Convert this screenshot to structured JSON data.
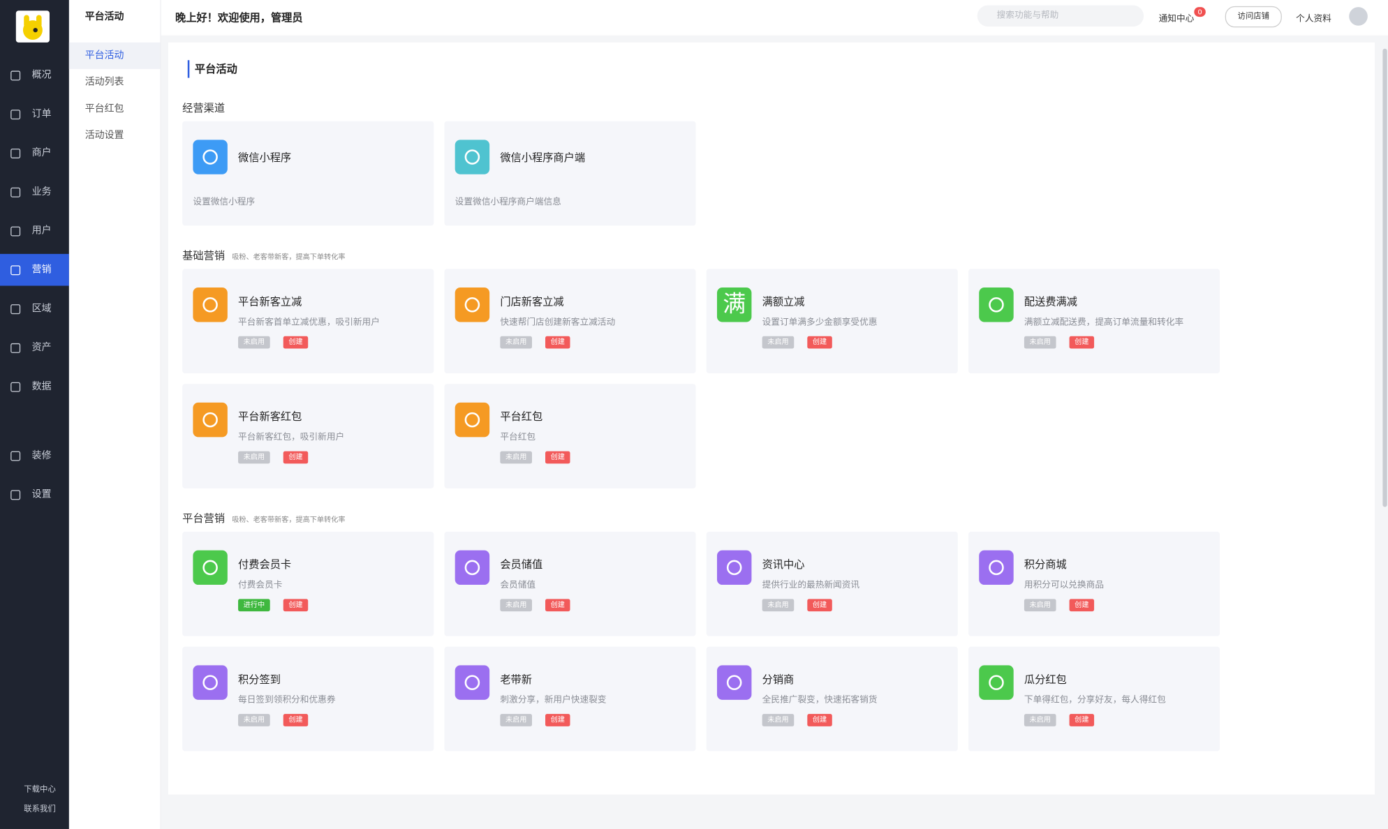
{
  "sidebar": {
    "items": [
      "概况",
      "订单",
      "商户",
      "业务",
      "用户",
      "营销",
      "区域",
      "资产",
      "数据",
      "装修",
      "设置"
    ],
    "active": 5,
    "bottom": [
      "下载中心",
      "联系我们"
    ]
  },
  "subnav": {
    "title": "平台活动",
    "items": [
      "平台活动",
      "活动列表",
      "平台红包",
      "活动设置"
    ],
    "active": 0
  },
  "header": {
    "greeting": "晚上好！欢迎使用，管理员",
    "search": "搜索功能与帮助",
    "notify": "通知中心",
    "badge": "0",
    "visit": "访问店铺",
    "profile": "个人资料"
  },
  "page": {
    "title": "平台活动"
  },
  "sections": [
    {
      "title": "经营渠道",
      "cards": [
        {
          "title": "微信小程序",
          "desc": "设置微信小程序",
          "color": "#3d9bf5"
        },
        {
          "title": "微信小程序商户端",
          "desc": "设置微信小程序商户端信息",
          "color": "#4fc3d0"
        }
      ]
    },
    {
      "title": "基础营销",
      "subtitle": "吸粉、老客带新客，提高下单转化率",
      "cards": [
        {
          "title": "平台新客立减",
          "desc": "平台新客首单立减优惠，吸引新用户",
          "color": "#f59a23",
          "status": "未启用",
          "action": "创建"
        },
        {
          "title": "门店新客立减",
          "desc": "快速帮门店创建新客立减活动",
          "color": "#f59a23",
          "status": "未启用",
          "action": "创建"
        },
        {
          "title": "满额立减",
          "desc": "设置订单满多少金额享受优惠",
          "color": "#4cc94c",
          "icon_text": "满",
          "status": "未启用",
          "action": "创建"
        },
        {
          "title": "配送费满减",
          "desc": "满额立减配送费，提高订单流量和转化率",
          "color": "#4cc94c",
          "status": "未启用",
          "action": "创建"
        },
        {
          "title": "平台新客红包",
          "desc": "平台新客红包，吸引新用户",
          "color": "#f59a23",
          "status": "未启用",
          "action": "创建"
        },
        {
          "title": "平台红包",
          "desc": "平台红包",
          "color": "#f59a23",
          "status": "未启用",
          "action": "创建"
        }
      ]
    },
    {
      "title": "平台营销",
      "subtitle": "吸粉、老客带新客，提高下单转化率",
      "cards": [
        {
          "title": "付费会员卡",
          "desc": "付费会员卡",
          "color": "#4cc94c",
          "status": "进行中",
          "action": "创建"
        },
        {
          "title": "会员储值",
          "desc": "会员储值",
          "color": "#9b6ff0",
          "status": "未启用",
          "action": "创建"
        },
        {
          "title": "资讯中心",
          "desc": "提供行业的最热新闻资讯",
          "color": "#9b6ff0",
          "status": "未启用",
          "action": "创建"
        },
        {
          "title": "积分商城",
          "desc": "用积分可以兑换商品",
          "color": "#9b6ff0",
          "status": "未启用",
          "action": "创建"
        },
        {
          "title": "积分签到",
          "desc": "每日签到领积分和优惠券",
          "color": "#9b6ff0",
          "status": "未启用",
          "action": "创建"
        },
        {
          "title": "老带新",
          "desc": "刺激分享，新用户快速裂变",
          "color": "#9b6ff0",
          "status": "未启用",
          "action": "创建"
        },
        {
          "title": "分销商",
          "desc": "全民推广裂变，快速拓客销货",
          "color": "#9b6ff0",
          "status": "未启用",
          "action": "创建"
        },
        {
          "title": "瓜分红包",
          "desc": "下单得红包，分享好友，每人得红包",
          "color": "#4cc94c",
          "status": "未启用",
          "action": "创建"
        }
      ]
    }
  ]
}
